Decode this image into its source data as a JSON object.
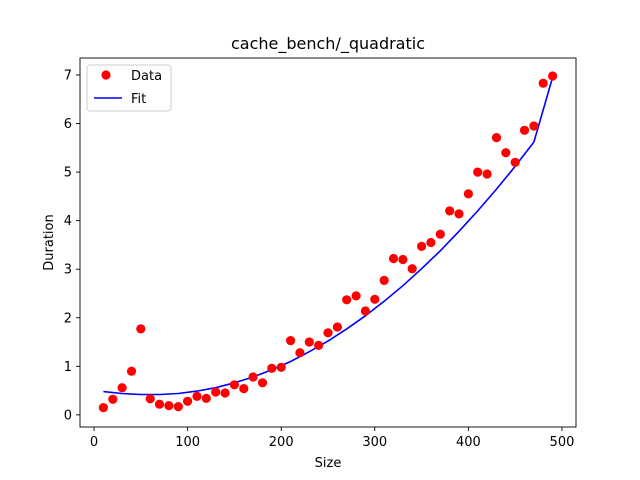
{
  "chart_data": {
    "type": "scatter",
    "title": "cache_bench/_quadratic",
    "xlabel": "Size",
    "ylabel": "Duration",
    "xlim": [
      -15,
      515
    ],
    "ylim": [
      -0.25,
      7.35
    ],
    "xticks": [
      0,
      100,
      200,
      300,
      400,
      500
    ],
    "yticks": [
      0,
      1,
      2,
      3,
      4,
      5,
      6,
      7
    ],
    "grid": false,
    "legend": {
      "placement": "top-left",
      "entries": [
        "Data",
        "Fit"
      ]
    },
    "series": [
      {
        "name": "Data",
        "kind": "scatter",
        "color": "#ff0000",
        "x": [
          10,
          20,
          30,
          40,
          50,
          60,
          70,
          80,
          90,
          100,
          110,
          120,
          130,
          140,
          150,
          160,
          170,
          180,
          190,
          200,
          210,
          220,
          230,
          240,
          250,
          260,
          270,
          280,
          290,
          300,
          310,
          320,
          330,
          340,
          350,
          360,
          370,
          380,
          390,
          400,
          410,
          420,
          430,
          440,
          450,
          460,
          470,
          480,
          490
        ],
        "y": [
          0.15,
          0.32,
          0.56,
          0.9,
          1.77,
          0.33,
          0.22,
          0.19,
          0.17,
          0.28,
          0.38,
          0.34,
          0.47,
          0.45,
          0.62,
          0.54,
          0.78,
          0.66,
          0.96,
          0.98,
          1.53,
          1.28,
          1.5,
          1.43,
          1.69,
          1.81,
          2.37,
          2.45,
          2.14,
          2.38,
          2.77,
          3.22,
          3.2,
          3.01,
          3.47,
          3.55,
          3.72,
          4.2,
          4.14,
          4.55,
          5.0,
          4.96,
          5.71,
          5.4,
          5.2,
          5.86,
          5.95,
          6.83,
          6.98
        ]
      },
      {
        "name": "Fit",
        "kind": "line",
        "color": "#0000ff",
        "x": [
          10,
          30,
          50,
          70,
          90,
          110,
          130,
          150,
          170,
          190,
          210,
          230,
          250,
          270,
          290,
          310,
          330,
          350,
          370,
          390,
          410,
          430,
          450,
          470,
          490
        ],
        "y": [
          0.48,
          0.44,
          0.42,
          0.42,
          0.44,
          0.49,
          0.56,
          0.66,
          0.78,
          0.93,
          1.1,
          1.3,
          1.52,
          1.77,
          2.04,
          2.34,
          2.66,
          3.01,
          3.38,
          3.78,
          4.2,
          4.65,
          5.12,
          5.62,
          6.95
        ]
      }
    ]
  }
}
